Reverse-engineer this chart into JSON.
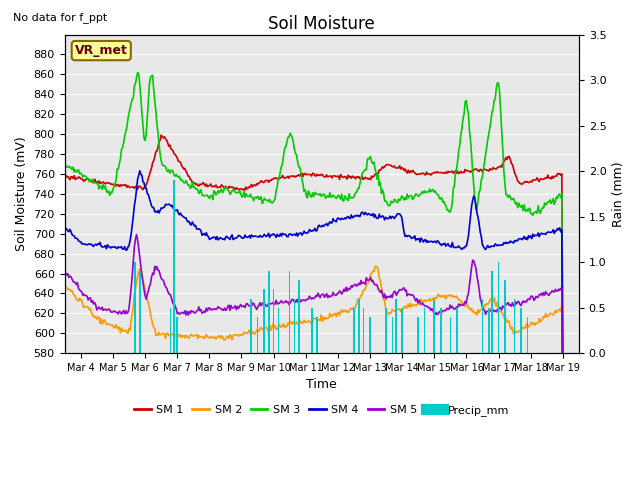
{
  "title": "Soil Moisture",
  "subtitle": "No data for f_ppt",
  "ylabel_left": "Soil Moisture (mV)",
  "ylabel_right": "Rain (mm)",
  "xlabel": "Time",
  "ylim_left": [
    580,
    900
  ],
  "ylim_right": [
    0.0,
    3.5
  ],
  "yticks_left": [
    580,
    600,
    620,
    640,
    660,
    680,
    700,
    720,
    740,
    760,
    780,
    800,
    820,
    840,
    860,
    880
  ],
  "yticks_right": [
    0.0,
    0.5,
    1.0,
    1.5,
    2.0,
    2.5,
    3.0,
    3.5
  ],
  "xtick_labels": [
    "Mar 4",
    "Mar 5",
    "Mar 6",
    "Mar 7",
    "Mar 8",
    "Mar 9",
    "Mar 10",
    "Mar 11",
    "Mar 12",
    "Mar 13",
    "Mar 14",
    "Mar 15",
    "Mar 16",
    "Mar 17",
    "Mar 18",
    "Mar 19"
  ],
  "xlim": [
    3.5,
    19.5
  ],
  "sm1_color": "#cc0000",
  "sm2_color": "#ff9900",
  "sm3_color": "#00cc00",
  "sm4_color": "#0000cc",
  "sm5_color": "#9900cc",
  "precip_color": "#00cccc",
  "bg_color": "#e8e8e8",
  "vr_met_bg": "#ffff99",
  "vr_met_border": "#886600",
  "line_width": 1.2,
  "figsize": [
    6.4,
    4.8
  ],
  "dpi": 100
}
